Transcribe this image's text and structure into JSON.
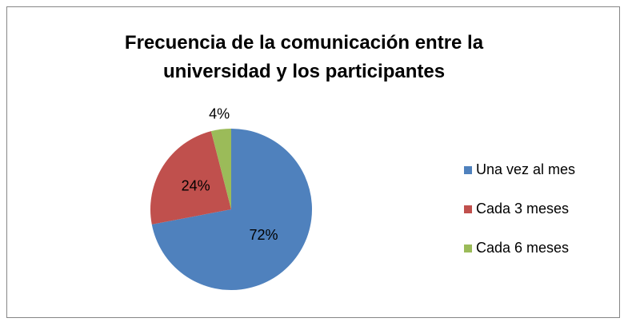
{
  "chart_data": {
    "type": "pie",
    "title": "Frecuencia de la comunicación entre la universidad y los participantes",
    "categories": [
      "Una vez al mes",
      "Cada 3 meses",
      "Cada 6 meses"
    ],
    "values": [
      72,
      24,
      4
    ],
    "value_labels": [
      "72%",
      "24%",
      "4%"
    ],
    "colors": [
      "#4f81bd",
      "#c0504d",
      "#9bbb59"
    ],
    "legend": "right"
  }
}
